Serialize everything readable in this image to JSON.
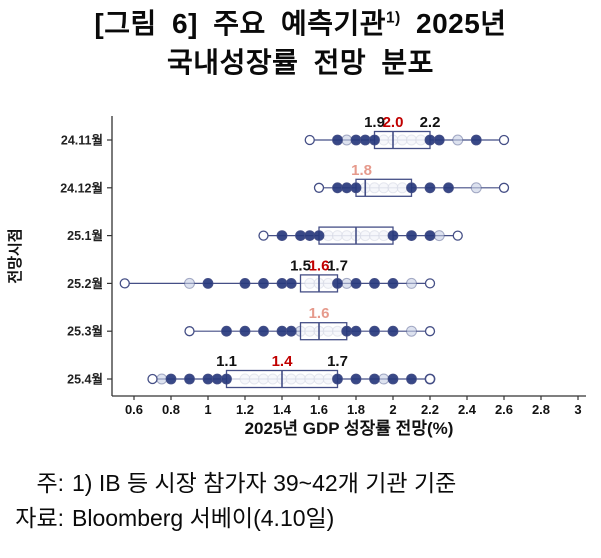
{
  "title": {
    "line1_prefix": "[그림 6] 주요 예측기관",
    "line1_sup": "1)",
    "line1_suffix": " 2025년",
    "line2": "국내성장률 전망 분포"
  },
  "footer": {
    "note_label": "주:",
    "note_text": "1) IB 등 시장 참가자 39~42개 기관 기준",
    "source_label": "자료:",
    "source_text": "Bloomberg 서베이(4.10일)"
  },
  "chart_data": {
    "type": "boxplot",
    "title": "[그림 6] 주요 예측기관1) 2025년 국내성장률 전망 분포",
    "xlabel": "2025년 GDP 성장률 전망(%)",
    "ylabel": "전망시점",
    "grid": false,
    "xlim": [
      0.45,
      3.05
    ],
    "x_ticks": [
      0.6,
      0.8,
      1,
      1.2,
      1.4,
      1.6,
      1.8,
      2,
      2.2,
      2.4,
      2.6,
      2.8,
      3
    ],
    "x_tick_labels": [
      "0.6",
      "0.8",
      "1",
      "1.2",
      "1.4",
      "1.6",
      "1.8",
      "2",
      "2.2",
      "2.4",
      "2.6",
      "2.8",
      "3"
    ],
    "colors": {
      "dark_point": "#27387d",
      "light_point_fill": "#c7cfe4",
      "box_border": "#454f86",
      "box_fill": "#ffffff",
      "annotation_black": "#111111",
      "annotation_red": "#c00000",
      "annotation_pink": "#e69a8c",
      "axis": "#333333"
    },
    "rows": [
      {
        "label": "24.11월",
        "whiskers": [
          1.55,
          2.6
        ],
        "box": [
          1.9,
          2.2
        ],
        "median": 2.0,
        "points_dark": [
          1.7,
          1.8,
          1.85,
          1.9,
          2.2,
          2.25,
          2.45
        ],
        "points_light": [
          1.75,
          1.95,
          2.0,
          2.05,
          2.1,
          2.15,
          2.35
        ],
        "points_open": [
          1.55,
          2.6
        ],
        "annotations": [
          {
            "text": "1.9",
            "v": 1.9,
            "color": "black"
          },
          {
            "text": "2.0",
            "v": 2.0,
            "color": "red"
          },
          {
            "text": "2.2",
            "v": 2.2,
            "color": "black"
          }
        ]
      },
      {
        "label": "24.12월",
        "whiskers": [
          1.6,
          2.6
        ],
        "box": [
          1.8,
          2.1
        ],
        "median": 1.85,
        "points_dark": [
          1.7,
          1.75,
          1.8,
          2.1,
          2.2,
          2.3
        ],
        "points_light": [
          1.85,
          1.9,
          1.95,
          2.0,
          2.05,
          2.45
        ],
        "points_open": [
          1.6,
          2.6
        ],
        "annotations": [
          {
            "text": "1.8",
            "v": 1.83,
            "color": "pink"
          }
        ]
      },
      {
        "label": "25.1월",
        "whiskers": [
          1.3,
          2.35
        ],
        "box": [
          1.6,
          2.0
        ],
        "median": 1.8,
        "points_dark": [
          1.4,
          1.5,
          1.55,
          1.6,
          2.0,
          2.1,
          2.2
        ],
        "points_light": [
          1.65,
          1.7,
          1.75,
          1.8,
          1.85,
          1.9,
          1.95,
          2.25
        ],
        "points_open": [
          1.3,
          2.35
        ],
        "annotations": []
      },
      {
        "label": "25.2월",
        "whiskers": [
          0.55,
          2.2
        ],
        "box": [
          1.5,
          1.7
        ],
        "median": 1.6,
        "points_dark": [
          1.0,
          1.2,
          1.3,
          1.4,
          1.45,
          1.7,
          1.8,
          1.9,
          2.0
        ],
        "points_light": [
          0.9,
          1.55,
          1.6,
          1.65,
          1.75,
          2.1
        ],
        "points_open": [
          0.55,
          2.2
        ],
        "annotations": [
          {
            "text": "1.5",
            "v": 1.5,
            "color": "black"
          },
          {
            "text": "1.6",
            "v": 1.6,
            "color": "red"
          },
          {
            "text": "1.7",
            "v": 1.7,
            "color": "black"
          }
        ]
      },
      {
        "label": "25.3월",
        "whiskers": [
          0.9,
          2.2
        ],
        "box": [
          1.5,
          1.75
        ],
        "median": 1.6,
        "points_dark": [
          1.1,
          1.2,
          1.3,
          1.4,
          1.45,
          1.75,
          1.8,
          1.9,
          2.0
        ],
        "points_light": [
          1.5,
          1.55,
          1.6,
          1.65,
          1.7,
          2.1
        ],
        "points_open": [
          0.9,
          2.2
        ],
        "annotations": [
          {
            "text": "1.6",
            "v": 1.6,
            "color": "pink"
          }
        ]
      },
      {
        "label": "25.4월",
        "whiskers": [
          0.7,
          2.2
        ],
        "box": [
          1.1,
          1.7
        ],
        "median": 1.4,
        "points_dark": [
          0.8,
          0.9,
          1.0,
          1.05,
          1.1,
          1.7,
          1.8,
          1.9,
          2.0,
          2.1,
          2.2
        ],
        "points_light": [
          0.75,
          1.2,
          1.25,
          1.3,
          1.35,
          1.4,
          1.45,
          1.5,
          1.55,
          1.6,
          1.65,
          1.95
        ],
        "points_open": [
          0.7,
          2.2
        ],
        "annotations": [
          {
            "text": "1.1",
            "v": 1.1,
            "color": "black"
          },
          {
            "text": "1.4",
            "v": 1.4,
            "color": "red"
          },
          {
            "text": "1.7",
            "v": 1.7,
            "color": "black"
          }
        ]
      }
    ]
  }
}
